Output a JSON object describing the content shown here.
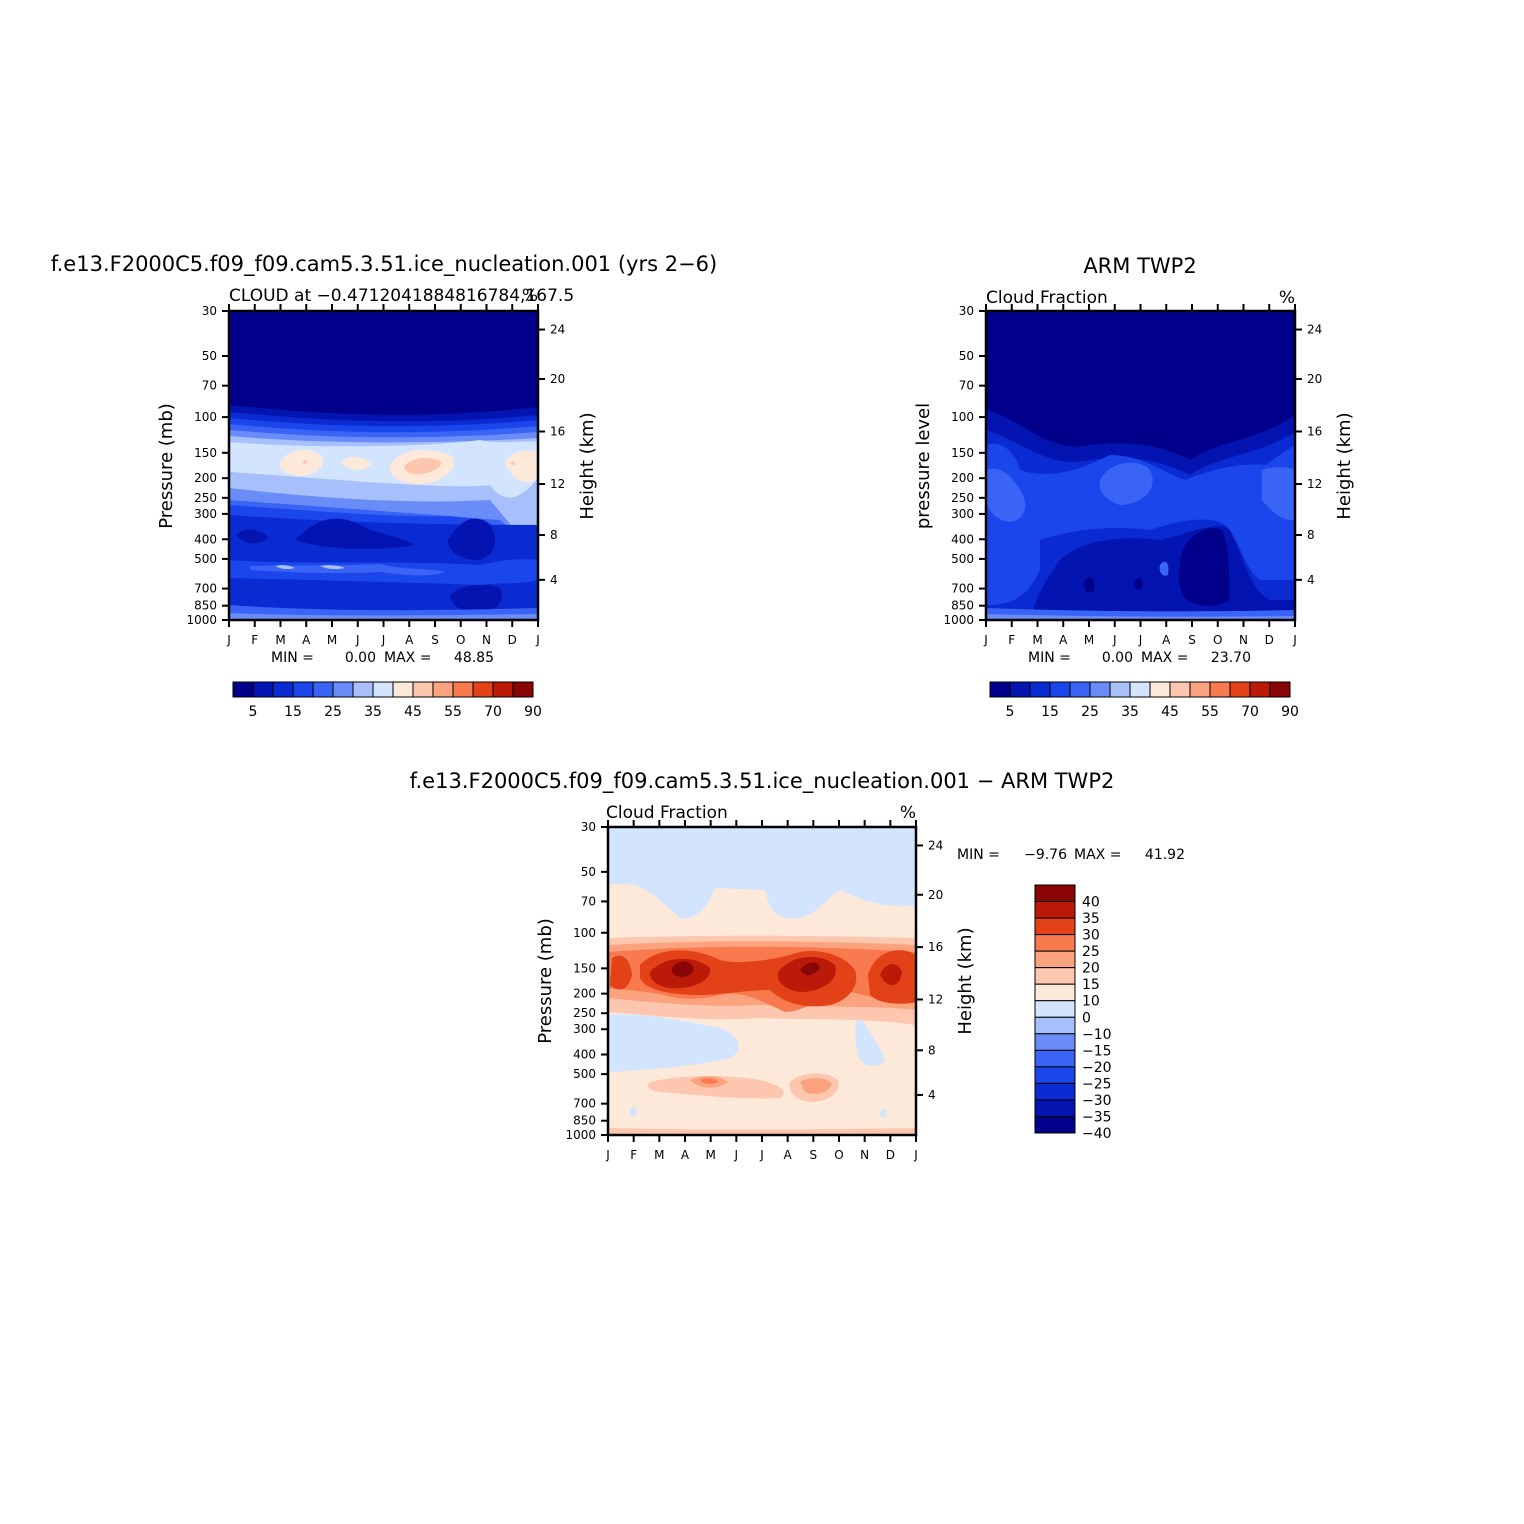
{
  "palette": [
    "#00008a",
    "#0414b0",
    "#0a2ad2",
    "#1b46ec",
    "#3a64f5",
    "#6a8cf8",
    "#a7bffb",
    "#d3e5fe",
    "#fde9d9",
    "#fcc7ae",
    "#fba37f",
    "#f97a4e",
    "#e34219",
    "#bb1a08",
    "#8a0606"
  ],
  "chart_data": [
    {
      "type": "heatmap",
      "id": "model",
      "title": "f.e13.F2000C5.f09_f09.cam5.3.51.ice_nucleation.001 (yrs 2−6)",
      "subtitle_left": "CLOUD at −0.4712041884816784,167.5",
      "subtitle_right": "%",
      "ylabel": "Pressure (mb)",
      "y2label": "Height (km)",
      "xticks": [
        "J",
        "F",
        "M",
        "A",
        "M",
        "J",
        "J",
        "A",
        "S",
        "O",
        "N",
        "D",
        "J"
      ],
      "yticks": [
        "30",
        "50",
        "70",
        "100",
        "150",
        "200",
        "250",
        "300",
        "400",
        "500",
        "700",
        "850",
        "1000"
      ],
      "y2ticks": [
        "24",
        "20",
        "16",
        "12",
        "8",
        "4"
      ],
      "stats": {
        "min_label": "MIN =",
        "min": "0.00",
        "max_label": "MAX =",
        "max": "48.85"
      },
      "colorbar": {
        "labels": [
          "5",
          "15",
          "25",
          "35",
          "45",
          "55",
          "70",
          "90"
        ]
      },
      "profile_levels_mb": [
        1000,
        850,
        700,
        500,
        400,
        300,
        250,
        200,
        150,
        100,
        70,
        50,
        30
      ],
      "profile_values": [
        15,
        18,
        18,
        24,
        8,
        15,
        22,
        30,
        38,
        14,
        2,
        1,
        0
      ]
    },
    {
      "type": "heatmap",
      "id": "obs",
      "title": "ARM TWP2",
      "subtitle_left": "Cloud Fraction",
      "subtitle_right": "%",
      "ylabel": "pressure level",
      "y2label": "Height (km)",
      "xticks": [
        "J",
        "F",
        "M",
        "A",
        "M",
        "J",
        "J",
        "A",
        "S",
        "O",
        "N",
        "D",
        "J"
      ],
      "yticks": [
        "30",
        "50",
        "70",
        "100",
        "150",
        "200",
        "250",
        "300",
        "400",
        "500",
        "700",
        "850",
        "1000"
      ],
      "y2ticks": [
        "24",
        "20",
        "16",
        "12",
        "8",
        "4"
      ],
      "stats": {
        "min_label": "MIN =",
        "min": "0.00",
        "max_label": "MAX =",
        "max": "23.70"
      },
      "colorbar": {
        "labels": [
          "5",
          "15",
          "25",
          "35",
          "45",
          "55",
          "70",
          "90"
        ]
      },
      "profile_levels_mb": [
        1000,
        850,
        700,
        500,
        400,
        300,
        250,
        200,
        150,
        100,
        70,
        50,
        30
      ],
      "profile_values": [
        16,
        12,
        10,
        13,
        13,
        16,
        18,
        17,
        14,
        8,
        1,
        0,
        0
      ]
    },
    {
      "type": "heatmap",
      "id": "diff",
      "title": "f.e13.F2000C5.f09_f09.cam5.3.51.ice_nucleation.001 − ARM TWP2",
      "subtitle_left": "Cloud Fraction",
      "subtitle_right": "%",
      "ylabel": "Pressure (mb)",
      "y2label": "Height (km)",
      "xticks": [
        "J",
        "F",
        "M",
        "A",
        "M",
        "J",
        "J",
        "A",
        "S",
        "O",
        "N",
        "D",
        "J"
      ],
      "yticks": [
        "30",
        "50",
        "70",
        "100",
        "150",
        "200",
        "250",
        "300",
        "400",
        "500",
        "700",
        "850",
        "1000"
      ],
      "y2ticks": [
        "24",
        "20",
        "16",
        "12",
        "8",
        "4"
      ],
      "stats": {
        "min_label": "MIN =",
        "min": "−9.76",
        "max_label": "MAX =",
        "max": "41.92"
      },
      "colorbar": {
        "labels": [
          "40",
          "35",
          "30",
          "25",
          "20",
          "15",
          "10",
          "0",
          "−10",
          "−15",
          "−20",
          "−25",
          "−30",
          "−35",
          "−40"
        ]
      },
      "profile_levels_mb": [
        1000,
        850,
        700,
        500,
        400,
        300,
        250,
        200,
        150,
        100,
        70,
        50,
        30
      ],
      "profile_values": [
        2,
        4,
        3,
        6,
        2,
        0,
        3,
        12,
        28,
        8,
        3,
        1,
        -2
      ]
    }
  ]
}
